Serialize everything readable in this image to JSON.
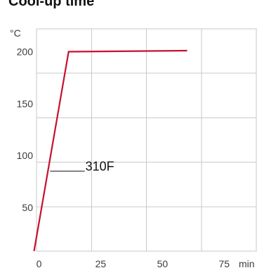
{
  "page": {
    "partial_heading": "Cool-up time"
  },
  "chart_data": {
    "type": "line",
    "title": "",
    "xlabel": "min",
    "ylabel": "°C",
    "xlim": [
      -1,
      88
    ],
    "ylim": [
      8,
      222
    ],
    "xticks": [
      0,
      25,
      50,
      75
    ],
    "yticks": [
      50,
      100,
      150,
      200
    ],
    "grid": true,
    "series": [
      {
        "name": "310F",
        "color": "#c8102e",
        "x": [
          -2,
          12,
          60
        ],
        "y": [
          8,
          200,
          201
        ]
      }
    ],
    "annotations": [
      {
        "text": "310F",
        "leader_from": [
          4.5,
          85
        ],
        "leader_to": [
          18.5,
          85
        ]
      }
    ]
  }
}
